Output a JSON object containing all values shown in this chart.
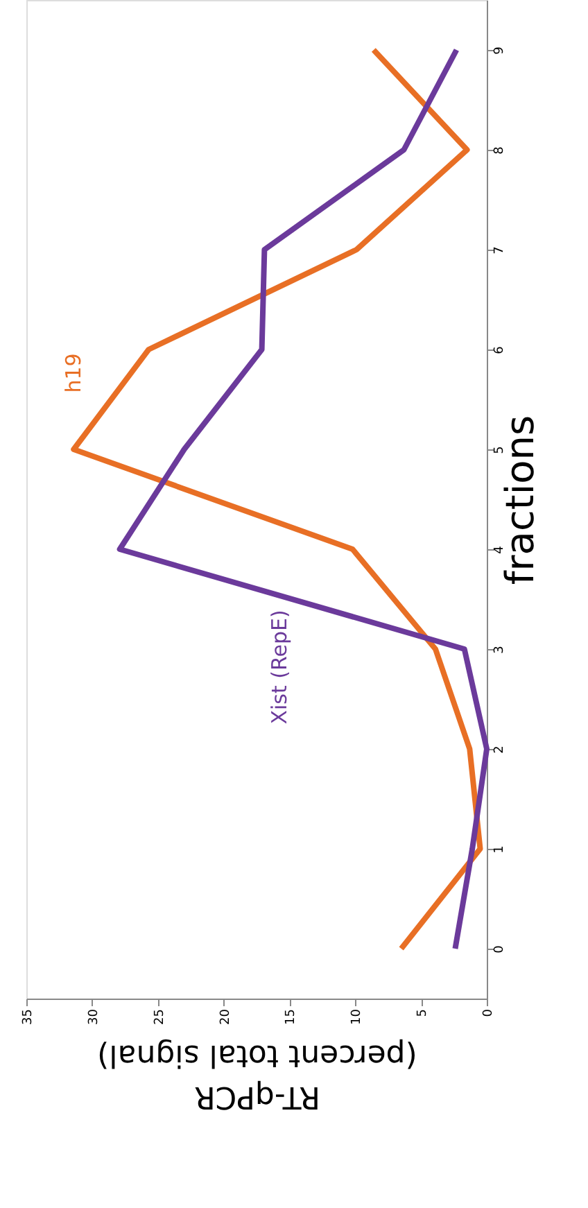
{
  "chart_data": {
    "type": "line",
    "orientation": "horizontal",
    "xlabel": "RT-qPCR\n(percent total signal)",
    "ylabel": "fractions",
    "categories": [
      "9",
      "8",
      "7",
      "6",
      "5",
      "4",
      "3",
      "2",
      "1",
      "0"
    ],
    "series": [
      {
        "name": "h19",
        "color": "#e86f25",
        "values": [
          8.6,
          1.5,
          9.9,
          25.7,
          31.4,
          10.2,
          3.9,
          1.3,
          0.5,
          6.5
        ]
      },
      {
        "name": "Xist (RepE)",
        "color": "#6b3a9b",
        "values": [
          2.3,
          6.3,
          16.9,
          17.1,
          23.0,
          27.9,
          1.7,
          0.0,
          1.1,
          2.4
        ]
      }
    ],
    "xlim": [
      35,
      0
    ],
    "xticks": [
      35,
      30,
      25,
      20,
      15,
      10,
      5,
      0
    ],
    "marker": "none",
    "line_style": "solid"
  }
}
